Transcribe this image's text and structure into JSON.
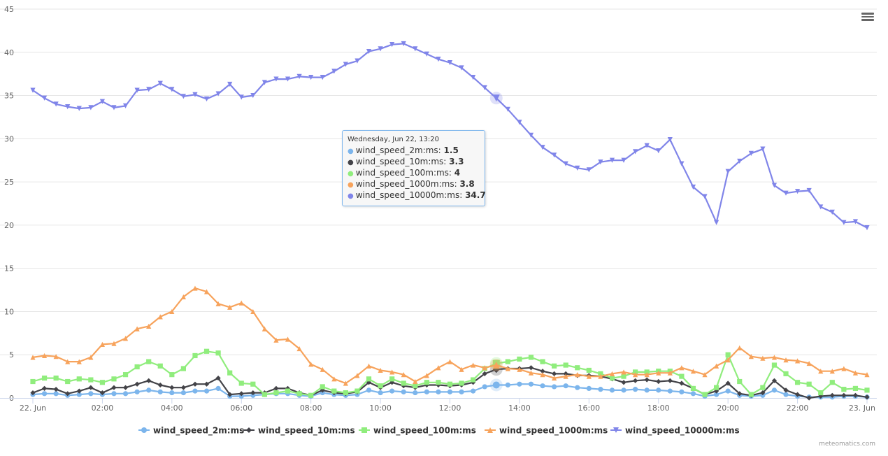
{
  "chart_data": {
    "type": "line",
    "title": "",
    "xlabel": "",
    "ylabel": "",
    "ylim": [
      0,
      45
    ],
    "yticks": [
      0,
      5,
      10,
      15,
      20,
      25,
      30,
      35,
      40,
      45
    ],
    "xrange": [
      "22 Jun 00:00",
      "23 Jun 00:00"
    ],
    "xtick_labels": [
      "22. Jun",
      "02:00",
      "04:00",
      "06:00",
      "08:00",
      "10:00",
      "12:00",
      "14:00",
      "16:00",
      "18:00",
      "20:00",
      "22:00",
      "23. Jun"
    ],
    "grid": true,
    "legend_placement": "bottom",
    "x": [
      "00:00",
      "00:20",
      "00:40",
      "01:00",
      "01:20",
      "01:40",
      "02:00",
      "02:20",
      "02:40",
      "03:00",
      "03:20",
      "03:40",
      "04:00",
      "04:20",
      "04:40",
      "05:00",
      "05:20",
      "05:40",
      "06:00",
      "06:20",
      "06:40",
      "07:00",
      "07:20",
      "07:40",
      "08:00",
      "08:20",
      "08:40",
      "09:00",
      "09:20",
      "09:40",
      "10:00",
      "10:20",
      "10:40",
      "11:00",
      "11:20",
      "11:40",
      "12:00",
      "12:20",
      "12:40",
      "13:00",
      "13:20",
      "13:40",
      "14:00",
      "14:20",
      "14:40",
      "15:00",
      "15:20",
      "15:40",
      "16:00",
      "16:20",
      "16:40",
      "17:00",
      "17:20",
      "17:40",
      "18:00",
      "18:20",
      "18:40",
      "19:00",
      "19:20",
      "19:40",
      "20:00",
      "20:20",
      "20:40",
      "21:00",
      "21:20",
      "21:40",
      "22:00",
      "22:20",
      "22:40",
      "23:00",
      "23:20",
      "23:40",
      "24:00"
    ],
    "series": [
      {
        "name": "wind_speed_2m:ms",
        "color": "#7cb5ec",
        "marker": "circle",
        "values": [
          0.4,
          0.5,
          0.5,
          0.3,
          0.4,
          0.5,
          0.4,
          0.5,
          0.5,
          0.7,
          0.9,
          0.7,
          0.6,
          0.6,
          0.8,
          0.8,
          1.1,
          0.2,
          0.2,
          0.3,
          0.4,
          0.5,
          0.5,
          0.3,
          0.2,
          0.6,
          0.4,
          0.3,
          0.4,
          0.9,
          0.6,
          0.8,
          0.7,
          0.6,
          0.7,
          0.7,
          0.7,
          0.7,
          0.8,
          1.3,
          1.5,
          1.5,
          1.6,
          1.6,
          1.4,
          1.3,
          1.4,
          1.2,
          1.1,
          1.0,
          0.9,
          0.9,
          1.0,
          0.9,
          0.9,
          0.8,
          0.7,
          0.5,
          0.2,
          0.4,
          0.8,
          0.3,
          0.2,
          0.3,
          0.9,
          0.4,
          0.2,
          0.1,
          0.1,
          0.1,
          0.2,
          0.2,
          0.1
        ]
      },
      {
        "name": "wind_speed_10m:ms",
        "color": "#434348",
        "marker": "diamond",
        "values": [
          0.6,
          1.1,
          1.0,
          0.5,
          0.8,
          1.2,
          0.6,
          1.2,
          1.2,
          1.6,
          2.0,
          1.5,
          1.2,
          1.2,
          1.6,
          1.6,
          2.3,
          0.4,
          0.5,
          0.6,
          0.6,
          1.1,
          1.1,
          0.6,
          0.3,
          0.9,
          0.6,
          0.5,
          0.7,
          1.8,
          1.2,
          1.8,
          1.4,
          1.2,
          1.5,
          1.5,
          1.4,
          1.5,
          1.8,
          2.8,
          3.3,
          3.4,
          3.4,
          3.5,
          3.1,
          2.8,
          2.8,
          2.6,
          2.6,
          2.5,
          2.2,
          1.8,
          2.0,
          2.1,
          1.9,
          2.0,
          1.7,
          1.1,
          0.4,
          0.8,
          1.7,
          0.5,
          0.3,
          0.6,
          2.0,
          0.9,
          0.4,
          0.0,
          0.2,
          0.3,
          0.3,
          0.3,
          0.1
        ]
      },
      {
        "name": "wind_speed_100m:ms",
        "color": "#90ed7d",
        "marker": "square",
        "values": [
          1.9,
          2.3,
          2.3,
          1.9,
          2.2,
          2.1,
          1.8,
          2.2,
          2.7,
          3.6,
          4.2,
          3.7,
          2.7,
          3.4,
          4.9,
          5.4,
          5.2,
          2.9,
          1.7,
          1.6,
          0.4,
          0.6,
          0.8,
          0.5,
          0.3,
          1.3,
          0.8,
          0.6,
          0.8,
          2.2,
          1.4,
          2.2,
          1.7,
          1.4,
          1.8,
          1.8,
          1.6,
          1.7,
          2.1,
          3.4,
          4.0,
          4.2,
          4.5,
          4.7,
          4.2,
          3.7,
          3.8,
          3.5,
          3.2,
          2.8,
          2.3,
          2.5,
          3.0,
          3.0,
          3.1,
          3.1,
          2.5,
          1.1,
          0.4,
          1.2,
          5.0,
          1.9,
          0.4,
          1.2,
          3.8,
          2.8,
          1.8,
          1.6,
          0.6,
          1.8,
          1.0,
          1.1,
          0.9
        ]
      },
      {
        "name": "wind_speed_1000m:ms",
        "color": "#f7a35c",
        "marker": "triangle",
        "values": [
          4.7,
          4.9,
          4.8,
          4.2,
          4.2,
          4.7,
          6.2,
          6.3,
          6.9,
          8.0,
          8.3,
          9.4,
          10.0,
          11.7,
          12.7,
          12.3,
          10.9,
          10.5,
          11.0,
          10.0,
          8.0,
          6.7,
          6.8,
          5.7,
          3.9,
          3.3,
          2.2,
          1.7,
          2.6,
          3.7,
          3.2,
          3.0,
          2.7,
          1.9,
          2.6,
          3.5,
          4.2,
          3.3,
          3.8,
          3.5,
          3.8,
          3.4,
          3.3,
          2.9,
          2.7,
          2.3,
          2.5,
          2.7,
          2.5,
          2.5,
          2.8,
          3.0,
          2.7,
          2.7,
          2.9,
          2.9,
          3.5,
          3.1,
          2.7,
          3.7,
          4.4,
          5.8,
          4.8,
          4.6,
          4.7,
          4.4,
          4.3,
          4.0,
          3.1,
          3.1,
          3.4,
          2.9,
          2.7
        ]
      },
      {
        "name": "wind_speed_10000m:ms",
        "color": "#8085e9",
        "marker": "triangle-down",
        "values": [
          35.6,
          34.7,
          34.0,
          33.7,
          33.5,
          33.6,
          34.3,
          33.6,
          33.8,
          35.6,
          35.7,
          36.4,
          35.7,
          34.9,
          35.1,
          34.6,
          35.2,
          36.3,
          34.8,
          35.0,
          36.5,
          36.9,
          36.9,
          37.2,
          37.1,
          37.1,
          37.8,
          38.6,
          39.0,
          40.1,
          40.4,
          40.9,
          41.0,
          40.4,
          39.8,
          39.2,
          38.8,
          38.2,
          37.1,
          35.9,
          34.7,
          33.4,
          31.9,
          30.4,
          29.0,
          28.1,
          27.1,
          26.6,
          26.4,
          27.3,
          27.5,
          27.5,
          28.5,
          29.2,
          28.6,
          29.9,
          27.1,
          24.4,
          23.3,
          20.3,
          26.2,
          27.4,
          28.3,
          28.8,
          24.6,
          23.7,
          23.9,
          24.0,
          22.1,
          21.5,
          20.3,
          20.4,
          19.7
        ]
      }
    ],
    "tooltip": {
      "header": "Wednesday, Jun 22, 13:20",
      "index": 40,
      "rows": [
        {
          "label": "wind_speed_2m:ms: ",
          "value": "1.5"
        },
        {
          "label": "wind_speed_10m:ms: ",
          "value": "3.3"
        },
        {
          "label": "wind_speed_100m:ms: ",
          "value": "4"
        },
        {
          "label": "wind_speed_1000m:ms: ",
          "value": "3.8"
        },
        {
          "label": "wind_speed_10000m:ms: ",
          "value": "34.7"
        }
      ]
    }
  },
  "credit": "meteomatics.com",
  "menu_icon": "hamburger-menu-icon"
}
